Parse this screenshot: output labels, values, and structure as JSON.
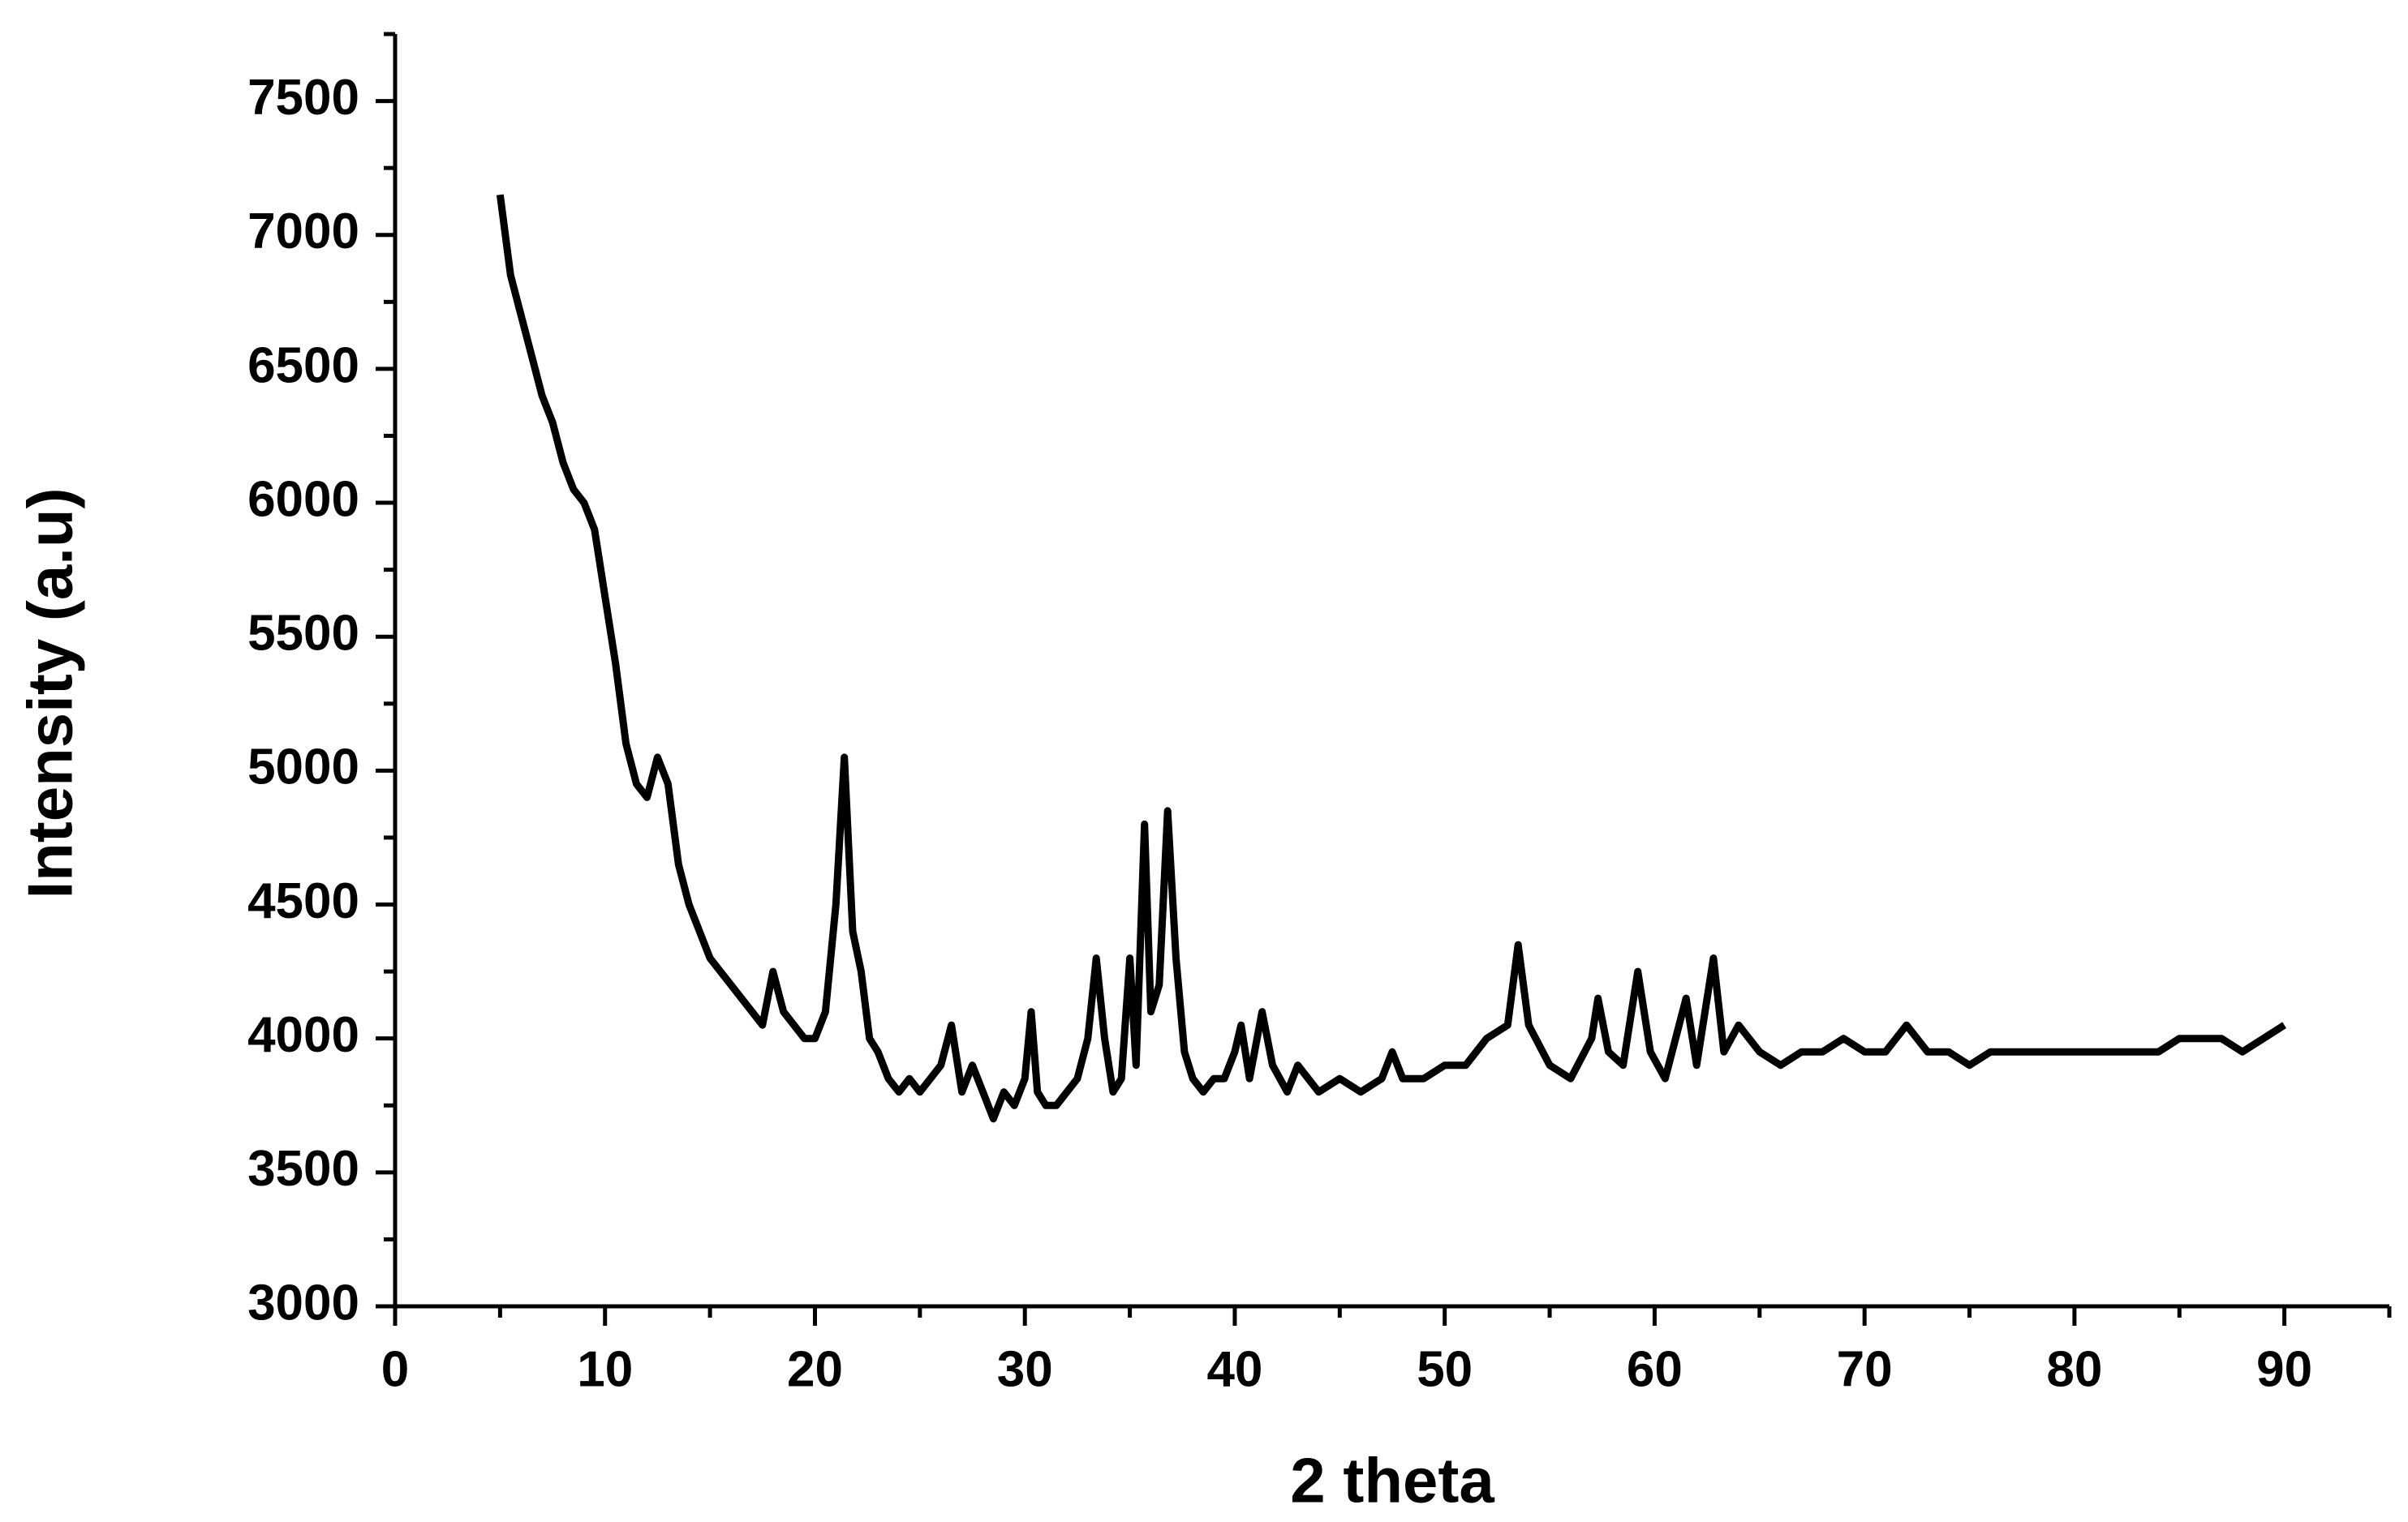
{
  "chart_data": {
    "type": "line",
    "xlabel": "2 theta",
    "ylabel": "Intensity (a.u)",
    "xlim": [
      0,
      95
    ],
    "xticks": [
      0,
      10,
      20,
      30,
      40,
      50,
      60,
      70,
      80,
      90
    ],
    "xminorticks": [
      5,
      15,
      25,
      35,
      45,
      55,
      65,
      75,
      85,
      95
    ],
    "ylim": [
      3000,
      7750
    ],
    "yticks": [
      3000,
      3500,
      4000,
      4500,
      5000,
      5500,
      6000,
      6500,
      7000,
      7500
    ],
    "yminorticks": [
      3250,
      3750,
      4250,
      4750,
      5250,
      5750,
      6250,
      6750,
      7250,
      7750
    ],
    "series": [
      {
        "color": "#000000",
        "x": [
          5,
          5.5,
          6,
          6.5,
          7,
          7.5,
          8,
          8.5,
          9,
          9.5,
          10,
          10.5,
          11,
          11.5,
          12,
          12.5,
          13,
          13.5,
          14,
          14.5,
          15,
          15.5,
          16,
          16.5,
          17,
          17.5,
          18,
          18.5,
          19,
          19.5,
          20,
          20.5,
          21,
          21.4,
          21.8,
          22.2,
          22.6,
          23,
          23.5,
          24,
          24.5,
          25,
          25.5,
          26,
          26.5,
          27,
          27.5,
          28,
          28.5,
          29,
          29.5,
          30,
          30.3,
          30.6,
          31,
          31.5,
          32,
          32.5,
          33,
          33.4,
          33.8,
          34.2,
          34.6,
          35,
          35.3,
          35.7,
          36,
          36.4,
          36.8,
          37.2,
          37.6,
          38,
          38.5,
          39,
          39.5,
          40,
          40.3,
          40.7,
          41.3,
          41.8,
          42.5,
          43,
          43.5,
          44,
          45,
          46,
          47,
          47.5,
          48,
          49,
          50,
          51,
          52,
          53,
          53.5,
          54,
          55,
          56,
          57,
          57.3,
          57.8,
          58.5,
          59.2,
          59.8,
          60.5,
          61.5,
          62,
          62.8,
          63.3,
          64,
          65,
          66,
          67,
          68,
          69,
          70,
          71,
          72,
          73,
          74,
          75,
          76,
          77,
          78,
          79,
          80,
          81,
          82,
          83,
          84,
          85,
          86,
          87,
          88,
          89,
          90
        ],
        "values": [
          7150,
          6850,
          6700,
          6550,
          6400,
          6300,
          6150,
          6050,
          6000,
          5900,
          5650,
          5400,
          5100,
          4950,
          4900,
          5050,
          4950,
          4650,
          4500,
          4400,
          4300,
          4250,
          4200,
          4150,
          4100,
          4050,
          4250,
          4100,
          4050,
          4000,
          4000,
          4100,
          4500,
          5050,
          4400,
          4250,
          4000,
          3950,
          3850,
          3800,
          3850,
          3800,
          3850,
          3900,
          4050,
          3800,
          3900,
          3800,
          3700,
          3800,
          3750,
          3850,
          4100,
          3800,
          3750,
          3750,
          3800,
          3850,
          4000,
          4300,
          4000,
          3800,
          3850,
          4300,
          3900,
          4800,
          4100,
          4200,
          4850,
          4300,
          3950,
          3850,
          3800,
          3850,
          3850,
          3950,
          4050,
          3850,
          4100,
          3900,
          3800,
          3900,
          3850,
          3800,
          3850,
          3800,
          3850,
          3950,
          3850,
          3850,
          3900,
          3900,
          4000,
          4050,
          4350,
          4050,
          3900,
          3850,
          4000,
          4150,
          3950,
          3900,
          4250,
          3950,
          3850,
          4150,
          3900,
          4300,
          3950,
          4050,
          3950,
          3900,
          3950,
          3950,
          4000,
          3950,
          3950,
          4050,
          3950,
          3950,
          3900,
          3950,
          3950,
          3950,
          3950,
          3950,
          3950,
          3950,
          3950,
          3950,
          4000,
          4000,
          4000,
          3950,
          4000,
          4050
        ]
      }
    ]
  }
}
